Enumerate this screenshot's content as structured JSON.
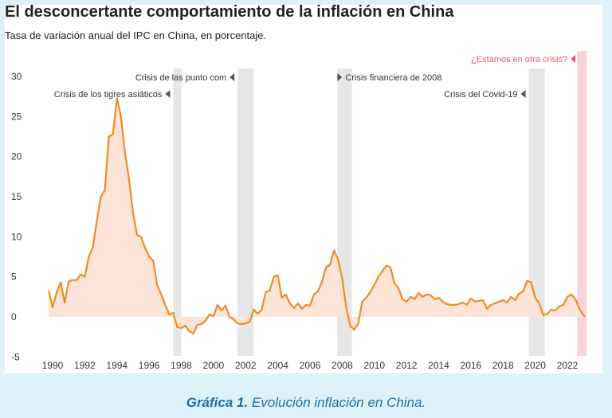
{
  "header": {
    "title": "El desconcertante comportamiento de la inflación en China",
    "subtitle": "Tasa de variación anual del IPC en China, en porcentaje."
  },
  "caption": {
    "label": "Gráfica 1.",
    "text": "Evolución inflación en China."
  },
  "colors": {
    "line": "#f08a24",
    "area": "#fde4d9",
    "crisis_band": "#e6e6e6",
    "current_band": "#f9d3d9",
    "current_text": "#e45a6b",
    "text": "#333333",
    "caption": "#1f6fa9"
  },
  "chart_data": {
    "type": "area",
    "title": "El desconcertante comportamiento de la inflación en China",
    "subtitle": "Tasa de variación anual del IPC en China, en porcentaje.",
    "xlim": [
      1990,
      2023
    ],
    "ylim": [
      -5,
      30
    ],
    "yticks": [
      -5,
      0,
      5,
      10,
      15,
      20,
      25,
      30
    ],
    "xticks": [
      1990,
      1992,
      1994,
      1996,
      1998,
      2000,
      2002,
      2004,
      2006,
      2008,
      2010,
      2012,
      2014,
      2016,
      2018,
      2020,
      2022
    ],
    "grid": false,
    "series": [
      {
        "x": [
          1989.75,
          1990.0,
          1990.25,
          1990.5,
          1990.75,
          1991.0,
          1991.25,
          1991.5,
          1991.75,
          1992.0,
          1992.25,
          1992.5,
          1992.75,
          1993.0,
          1993.25,
          1993.5,
          1993.75,
          1994.0,
          1994.25,
          1994.5,
          1994.75,
          1995.0,
          1995.25,
          1995.5,
          1995.75,
          1996.0,
          1996.25,
          1996.5,
          1996.75,
          1997.0,
          1997.25,
          1997.5,
          1997.75,
          1998.0,
          1998.25,
          1998.5,
          1998.75,
          1999.0,
          1999.25,
          1999.5,
          1999.75,
          2000.0,
          2000.25,
          2000.5,
          2000.75,
          2001.0,
          2001.25,
          2001.5,
          2001.75,
          2002.0,
          2002.25,
          2002.5,
          2002.75,
          2003.0,
          2003.25,
          2003.5,
          2003.75,
          2004.0,
          2004.25,
          2004.5,
          2004.75,
          2005.0,
          2005.25,
          2005.5,
          2005.75,
          2006.0,
          2006.25,
          2006.5,
          2006.75,
          2007.0,
          2007.25,
          2007.5,
          2007.75,
          2008.0,
          2008.25,
          2008.5,
          2008.75,
          2009.0,
          2009.25,
          2009.5,
          2009.75,
          2010.0,
          2010.25,
          2010.5,
          2010.75,
          2011.0,
          2011.25,
          2011.5,
          2011.75,
          2012.0,
          2012.25,
          2012.5,
          2012.75,
          2013.0,
          2013.25,
          2013.5,
          2013.75,
          2014.0,
          2014.25,
          2014.5,
          2014.75,
          2015.0,
          2015.25,
          2015.5,
          2015.75,
          2016.0,
          2016.25,
          2016.5,
          2016.75,
          2017.0,
          2017.25,
          2017.5,
          2017.75,
          2018.0,
          2018.25,
          2018.5,
          2018.75,
          2019.0,
          2019.25,
          2019.5,
          2019.75,
          2020.0,
          2020.25,
          2020.5,
          2020.75,
          2021.0,
          2021.25,
          2021.5,
          2021.75,
          2022.0,
          2022.25,
          2022.5,
          2022.75,
          2023.0,
          2023.1
        ],
        "y": [
          3.3,
          1.2,
          3.0,
          4.3,
          1.8,
          4.4,
          4.6,
          4.6,
          5.3,
          5.0,
          7.5,
          8.7,
          12.0,
          15.0,
          15.8,
          22.5,
          22.8,
          27.3,
          25.0,
          20.5,
          17.2,
          13.0,
          10.2,
          10.0,
          8.6,
          7.5,
          7.0,
          4.0,
          2.8,
          1.5,
          0.3,
          0.5,
          -1.3,
          -1.4,
          -1.1,
          -1.8,
          -2.1,
          -1.0,
          -0.9,
          -0.5,
          0.3,
          0.1,
          1.5,
          0.8,
          1.4,
          0.0,
          -0.3,
          -0.8,
          -0.9,
          -0.8,
          -0.6,
          0.9,
          0.4,
          0.9,
          3.1,
          3.3,
          5.0,
          5.2,
          2.4,
          2.8,
          1.7,
          1.1,
          1.7,
          1.0,
          1.5,
          1.4,
          2.8,
          3.2,
          4.4,
          6.2,
          6.5,
          8.3,
          7.1,
          4.8,
          1.2,
          -1.1,
          -1.6,
          -0.8,
          1.9,
          2.4,
          3.1,
          4.0,
          5.0,
          5.7,
          6.4,
          6.2,
          4.2,
          3.6,
          2.2,
          1.9,
          2.5,
          2.2,
          3.0,
          2.5,
          2.8,
          2.7,
          2.2,
          2.4,
          1.9,
          1.6,
          1.5,
          1.5,
          1.6,
          1.8,
          1.5,
          2.3,
          1.9,
          2.0,
          2.1,
          1.0,
          1.5,
          1.7,
          1.9,
          2.1,
          1.8,
          2.5,
          2.1,
          2.9,
          3.2,
          4.5,
          4.3,
          2.4,
          1.7,
          0.2,
          0.4,
          0.9,
          0.8,
          1.3,
          1.5,
          2.5,
          2.8,
          2.2,
          1.0,
          0.2,
          0.0
        ]
      }
    ],
    "annotations": [
      {
        "label": "Crisis de los tigres asiáticos",
        "band": [
          1997.5,
          1998.0
        ],
        "row": 2
      },
      {
        "label": "Crisis de las punto com",
        "band": [
          2001.5,
          2002.5
        ],
        "row": 1
      },
      {
        "label": "Crisis financiera de 2008",
        "band": [
          2007.7,
          2008.6
        ],
        "row": 1,
        "side": "right"
      },
      {
        "label": "Crisis del Covid-19",
        "band": [
          2019.6,
          2020.6
        ],
        "row": 2
      },
      {
        "label": "¿Estamos en otra crisis?",
        "band": [
          2022.6,
          2023.2
        ],
        "row": 0,
        "current": true
      }
    ]
  }
}
